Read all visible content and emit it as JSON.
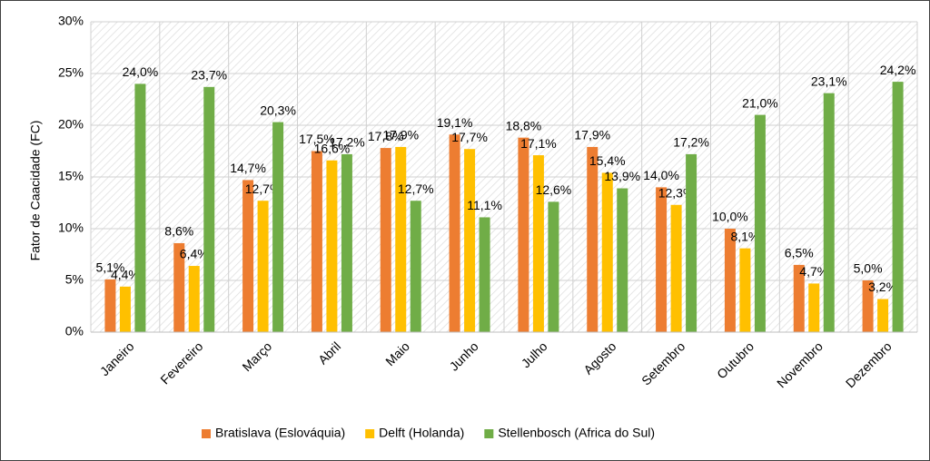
{
  "chart_data": {
    "type": "bar",
    "y_label": "Fator de Caacidade (FC)",
    "categories": [
      "Janeiro",
      "Fevereiro",
      "Março",
      "Abril",
      "Maio",
      "Junho",
      "Julho",
      "Agosto",
      "Setembro",
      "Outubro",
      "Novembro",
      "Dezembro"
    ],
    "series": [
      {
        "name": "Bratislava (Eslováquia)",
        "color": "#ed7d31",
        "values": [
          5.1,
          8.6,
          14.7,
          17.5,
          17.8,
          19.1,
          18.8,
          17.9,
          14.0,
          10.0,
          6.5,
          5.0
        ],
        "value_labels": [
          "5,1%",
          "8,6%",
          "14,7%",
          "17,5%",
          "17,8%",
          "19,1%",
          "18,8%",
          "17,9%",
          "14,0%",
          "10,0%",
          "6,5%",
          "5,0%"
        ]
      },
      {
        "name": "Delft (Holanda)",
        "color": "#ffc000",
        "values": [
          4.4,
          6.4,
          12.7,
          16.6,
          17.9,
          17.7,
          17.1,
          15.4,
          12.3,
          8.1,
          4.7,
          3.2
        ],
        "value_labels": [
          "4,4%",
          "6,4%",
          "12,7%",
          "16,6%",
          "17,9%",
          "17,7%",
          "17,1%",
          "15,4%",
          "12,3%",
          "8,1%",
          "4,7%",
          "3,2%"
        ]
      },
      {
        "name": "Stellenbosch (Africa do Sul)",
        "color": "#70ad47",
        "values": [
          24.0,
          23.7,
          20.3,
          17.2,
          12.7,
          11.1,
          12.6,
          13.9,
          17.2,
          21.0,
          23.1,
          24.2
        ],
        "value_labels": [
          "24,0%",
          "23,7%",
          "20,3%",
          "17,2%",
          "12,7%",
          "11,1%",
          "12,6%",
          "13,9%",
          "17,2%",
          "21,0%",
          "23,1%",
          "24,2%"
        ]
      }
    ],
    "ylim": [
      0,
      30
    ],
    "yticks": [
      {
        "value": 0,
        "label": "0%"
      },
      {
        "value": 5,
        "label": "5%"
      },
      {
        "value": 10,
        "label": "10%"
      },
      {
        "value": 15,
        "label": "15%"
      },
      {
        "value": 20,
        "label": "20%"
      },
      {
        "value": 25,
        "label": "25%"
      },
      {
        "value": 30,
        "label": "30%"
      }
    ],
    "grid": true,
    "legend": "bottom"
  }
}
